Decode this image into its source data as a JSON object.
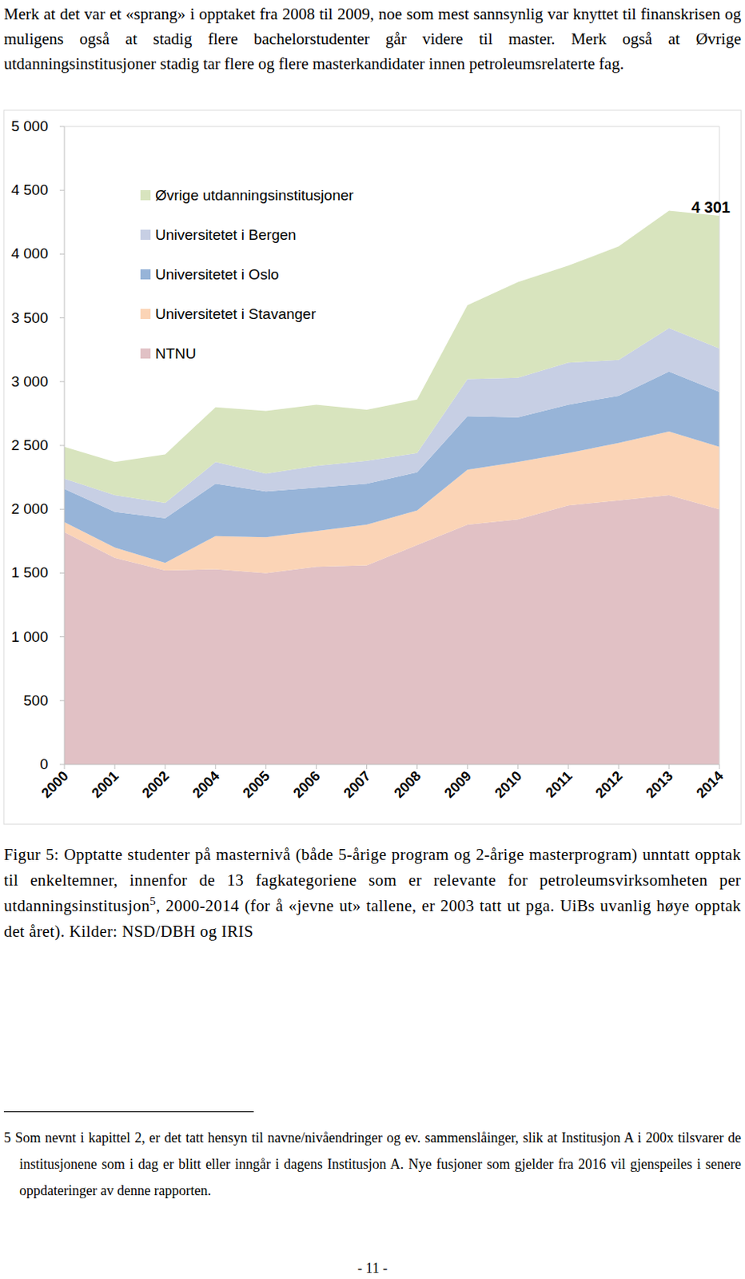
{
  "intro": "Merk at det var et «sprang» i opptaket fra 2008 til 2009, noe som mest sannsynlig var knyttet til finanskrisen og muligens også at stadig flere bachelorstudenter går videre til master. Merk også at Øvrige utdanningsinstitusjoner stadig tar flere og flere masterkandidater innen petroleumsrelaterte fag.",
  "chart_data": {
    "type": "area",
    "stacked": true,
    "categories": [
      "2000",
      "2001",
      "2002",
      "2004",
      "2005",
      "2006",
      "2007",
      "2008",
      "2009",
      "2010",
      "2011",
      "2012",
      "2013",
      "2014"
    ],
    "series": [
      {
        "name": "NTNU",
        "color": "#e1c1c5",
        "values": [
          1820,
          1620,
          1520,
          1530,
          1500,
          1550,
          1560,
          1720,
          1880,
          1920,
          2030,
          2070,
          2110,
          2000
        ]
      },
      {
        "name": "Universitetet i Stavanger",
        "color": "#fbd4b6",
        "values": [
          80,
          80,
          60,
          260,
          280,
          280,
          320,
          270,
          430,
          450,
          410,
          450,
          500,
          490
        ]
      },
      {
        "name": "Universitetet i Oslo",
        "color": "#97b4d8",
        "values": [
          260,
          280,
          350,
          410,
          360,
          340,
          320,
          300,
          420,
          350,
          380,
          370,
          470,
          430
        ]
      },
      {
        "name": "Universitetet i Bergen",
        "color": "#c7cfe4",
        "values": [
          80,
          130,
          120,
          170,
          140,
          170,
          180,
          150,
          290,
          310,
          330,
          280,
          340,
          340
        ]
      },
      {
        "name": "Øvrige utdanningsinstitusjoner",
        "color": "#d8e4be",
        "values": [
          250,
          260,
          380,
          430,
          490,
          480,
          400,
          420,
          580,
          750,
          760,
          890,
          920,
          1041
        ]
      }
    ],
    "ylim": [
      0,
      5000
    ],
    "yticks": [
      0,
      500,
      {
        "value": 1000,
        "label": "1 000"
      },
      {
        "value": 1500,
        "label": "1 500"
      },
      {
        "value": 2000,
        "label": "2 000"
      },
      {
        "value": 2500,
        "label": "2 500"
      },
      {
        "value": 3000,
        "label": "3 000"
      },
      {
        "value": 3500,
        "label": "3 500"
      },
      {
        "value": 4000,
        "label": "4 000"
      },
      {
        "value": 4500,
        "label": "4 500"
      },
      {
        "value": 5000,
        "label": "5 000"
      }
    ],
    "grid": false,
    "legend": "upper left",
    "annotations": [
      {
        "text": "4 301",
        "x": "2014",
        "y": 4301
      }
    ]
  },
  "caption": {
    "before": "Figur 5: Opptatte studenter på masternivå (både 5-årige program og 2-årige masterprogram) unntatt opptak til enkeltemner, innenfor de 13 fagkategoriene som er relevante for petroleumsvirksomheten per utdanningsinstitusjon",
    "ref": "5",
    "after": ", 2000-2014 (for å «jevne ut» tallene, er 2003 tatt ut pga. UiBs uvanlig høye opptak det året). Kilder: NSD/DBH og IRIS"
  },
  "footnote": {
    "number": "5",
    "text": "Som nevnt i kapittel 2, er det tatt hensyn til navne/nivåendringer og ev. sammenslåinger, slik at Institusjon A i 200x tilsvarer de institusjonene som i dag er blitt eller inngår i dagens Institusjon A. Nye fusjoner som gjelder fra 2016 vil gjenspeiles i senere oppdateringer av denne rapporten."
  },
  "page_number": "- 11 -"
}
